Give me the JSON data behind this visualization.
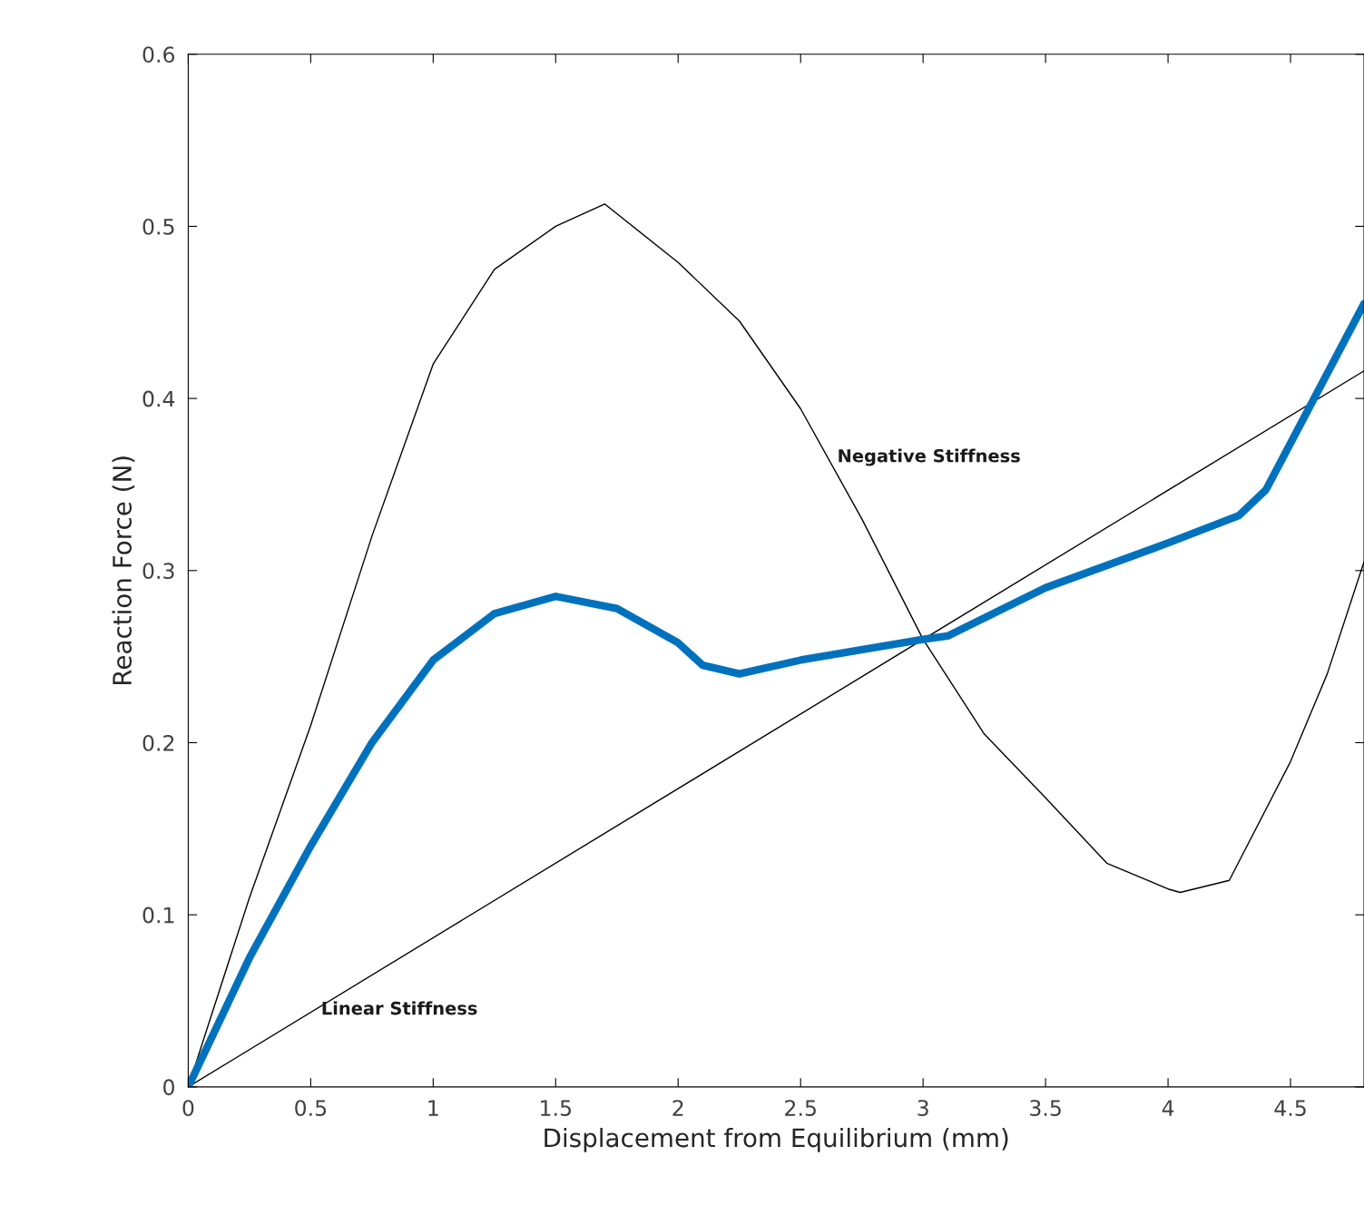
{
  "chart_data": {
    "type": "line",
    "xlabel": "Displacement from Equilibrium (mm)",
    "ylabel": "Reaction Force (N)",
    "xlim": [
      0,
      4.8
    ],
    "ylim": [
      0,
      0.6
    ],
    "xticks": [
      0,
      0.5,
      1,
      1.5,
      2,
      2.5,
      3,
      3.5,
      4,
      4.5
    ],
    "yticks": [
      0,
      0.1,
      0.2,
      0.3,
      0.4,
      0.5,
      0.6
    ],
    "grid": false,
    "legend": false,
    "series": [
      {
        "color": "#000000",
        "x": [
          0,
          0.25,
          0.5,
          0.75,
          1,
          1.25,
          1.5,
          1.7,
          2,
          2.25,
          2.5,
          2.75,
          3,
          3.25,
          3.5,
          3.75,
          4,
          4.05,
          4.25,
          4.5,
          4.65,
          4.8
        ],
        "values": [
          0,
          0.11,
          0.21,
          0.32,
          0.42,
          0.475,
          0.5,
          0.513,
          0.479,
          0.445,
          0.394,
          0.33,
          0.26,
          0.205,
          0.168,
          0.13,
          0.115,
          0.113,
          0.12,
          0.189,
          0.24,
          0.305
        ]
      },
      {
        "color": "#000000",
        "x": [
          0,
          4.8
        ],
        "values": [
          0,
          0.416
        ]
      },
      {
        "color": "#0072bd",
        "x": [
          0,
          0.25,
          0.5,
          0.75,
          1,
          1.25,
          1.5,
          1.75,
          2,
          2.1,
          2.25,
          2.5,
          3,
          3.1,
          3.5,
          4,
          4.29,
          4.4,
          4.8
        ],
        "values": [
          0,
          0.075,
          0.14,
          0.2,
          0.248,
          0.275,
          0.285,
          0.278,
          0.258,
          0.245,
          0.24,
          0.248,
          0.26,
          0.262,
          0.29,
          0.316,
          0.332,
          0.347,
          0.455
        ]
      }
    ],
    "annotations": [
      "Negative Stiffness",
      "Linear Stiffness"
    ]
  }
}
